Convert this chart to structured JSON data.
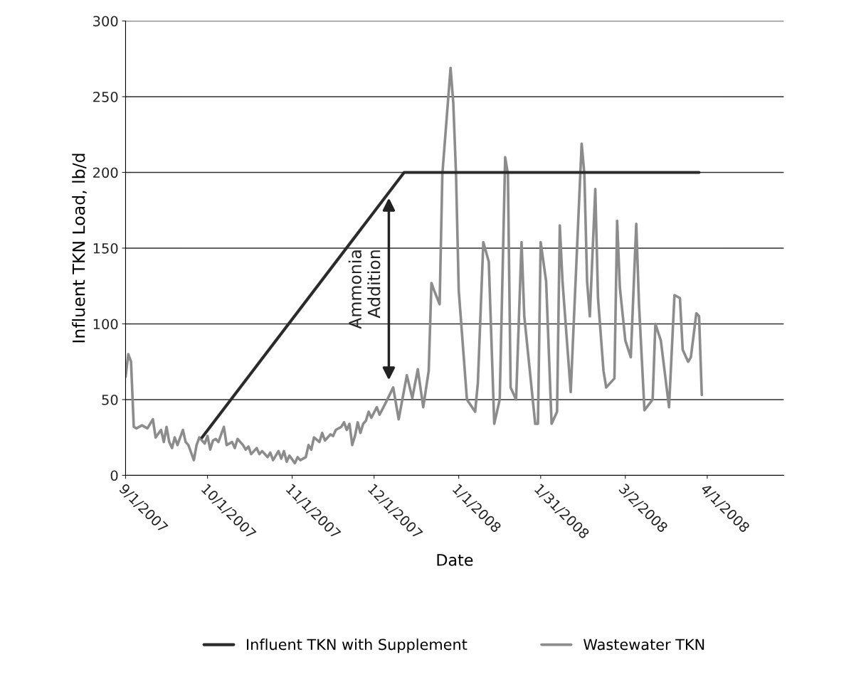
{
  "chart_data": {
    "type": "line",
    "xlabel": "Date",
    "ylabel": "Influent TKN Load, lb/d",
    "xlim": [
      "2007-09-01",
      "2008-04-29"
    ],
    "ylim": [
      0,
      300
    ],
    "yticks": [
      0,
      50,
      100,
      150,
      200,
      250,
      300
    ],
    "xticks": [
      {
        "value": "2007-09-01",
        "label": "9/1/2007"
      },
      {
        "value": "2007-10-01",
        "label": "10/1/2007"
      },
      {
        "value": "2007-11-01",
        "label": "11/1/2007"
      },
      {
        "value": "2007-12-01",
        "label": "12/1/2007"
      },
      {
        "value": "2008-01-01",
        "label": "1/1/2008"
      },
      {
        "value": "2008-01-31",
        "label": "1/31/2008"
      },
      {
        "value": "2008-03-02",
        "label": "3/2/2008"
      },
      {
        "value": "2008-04-01",
        "label": "4/1/2008"
      }
    ],
    "grid": "y",
    "legend": "bottom",
    "marker": "none",
    "line_style": "solid",
    "annotations": [
      "Ammonia\nAddition"
    ],
    "series": [
      {
        "name": "Influent TKN with Supplement",
        "color": "#2b2b2b",
        "x": [
          "2007-09-29",
          "2007-12-12",
          "2008-03-29"
        ],
        "values": [
          25,
          200,
          200
        ]
      },
      {
        "name": "Wastewater TKN",
        "color": "#8c8c8c",
        "x": [
          "2007-09-01",
          "2007-09-02",
          "2007-09-03",
          "2007-09-04",
          "2007-09-05",
          "2007-09-07",
          "2007-09-09",
          "2007-09-10",
          "2007-09-11",
          "2007-09-12",
          "2007-09-14",
          "2007-09-15",
          "2007-09-16",
          "2007-09-17",
          "2007-09-18",
          "2007-09-19",
          "2007-09-20",
          "2007-09-22",
          "2007-09-23",
          "2007-09-24",
          "2007-09-25",
          "2007-09-26",
          "2007-09-27",
          "2007-09-28",
          "2007-09-30",
          "2007-10-01",
          "2007-10-02",
          "2007-10-03",
          "2007-10-04",
          "2007-10-05",
          "2007-10-06",
          "2007-10-07",
          "2007-10-08",
          "2007-10-10",
          "2007-10-11",
          "2007-10-12",
          "2007-10-14",
          "2007-10-15",
          "2007-10-16",
          "2007-10-17",
          "2007-10-19",
          "2007-10-20",
          "2007-10-21",
          "2007-10-23",
          "2007-10-24",
          "2007-10-25",
          "2007-10-27",
          "2007-10-28",
          "2007-10-29",
          "2007-10-30",
          "2007-10-31",
          "2007-11-02",
          "2007-11-03",
          "2007-11-04",
          "2007-11-06",
          "2007-11-07",
          "2007-11-08",
          "2007-11-09",
          "2007-11-11",
          "2007-11-12",
          "2007-11-13",
          "2007-11-15",
          "2007-11-16",
          "2007-11-17",
          "2007-11-19",
          "2007-11-20",
          "2007-11-21",
          "2007-11-22",
          "2007-11-23",
          "2007-11-24",
          "2007-11-25",
          "2007-11-26",
          "2007-11-27",
          "2007-11-28",
          "2007-11-29",
          "2007-11-30",
          "2007-12-02",
          "2007-12-03",
          "2007-12-05",
          "2007-12-08",
          "2007-12-10",
          "2007-12-13",
          "2007-12-15",
          "2007-12-17",
          "2007-12-19",
          "2007-12-21",
          "2007-12-22",
          "2007-12-23",
          "2007-12-25",
          "2007-12-26",
          "2007-12-29",
          "2007-12-30",
          "2007-12-31",
          "2008-01-01",
          "2008-01-04",
          "2008-01-07",
          "2008-01-08",
          "2008-01-10",
          "2008-01-12",
          "2008-01-14",
          "2008-01-16",
          "2008-01-18",
          "2008-01-19",
          "2008-01-20",
          "2008-01-22",
          "2008-01-24",
          "2008-01-25",
          "2008-01-29",
          "2008-01-30",
          "2008-01-31",
          "2008-02-02",
          "2008-02-04",
          "2008-02-06",
          "2008-02-07",
          "2008-02-08",
          "2008-02-11",
          "2008-02-15",
          "2008-02-16",
          "2008-02-17",
          "2008-02-18",
          "2008-02-20",
          "2008-02-21",
          "2008-02-23",
          "2008-02-24",
          "2008-02-27",
          "2008-02-28",
          "2008-02-29",
          "2008-03-02",
          "2008-03-04",
          "2008-03-06",
          "2008-03-07",
          "2008-03-09",
          "2008-03-12",
          "2008-03-13",
          "2008-03-15",
          "2008-03-18",
          "2008-03-20",
          "2008-03-22",
          "2008-03-23",
          "2008-03-25",
          "2008-03-26",
          "2008-03-28",
          "2008-03-29",
          "2008-03-30"
        ],
        "values": [
          65,
          80,
          75,
          32,
          31,
          33,
          31,
          34,
          37,
          25,
          30,
          22,
          32,
          22,
          18,
          25,
          20,
          30,
          22,
          20,
          15,
          10,
          20,
          25,
          21,
          26,
          17,
          23,
          24,
          22,
          27,
          32,
          20,
          22,
          18,
          24,
          20,
          17,
          19,
          14,
          18,
          14,
          16,
          12,
          15,
          10,
          16,
          11,
          16,
          9,
          13,
          8,
          12,
          10,
          12,
          20,
          17,
          25,
          22,
          28,
          23,
          27,
          26,
          30,
          32,
          35,
          30,
          34,
          20,
          26,
          35,
          28,
          34,
          36,
          42,
          38,
          45,
          40,
          47,
          58,
          37,
          66,
          51,
          70,
          45,
          69,
          127,
          122,
          113,
          199,
          269,
          246,
          199,
          122,
          50,
          42,
          61,
          154,
          141,
          34,
          50,
          210,
          199,
          58,
          50,
          154,
          105,
          34,
          34,
          154,
          128,
          34,
          42,
          165,
          128,
          55,
          219,
          199,
          128,
          105,
          189,
          117,
          69,
          58,
          64,
          168,
          124,
          89,
          78,
          166,
          113,
          43,
          50,
          100,
          89,
          45,
          119,
          117,
          83,
          75,
          78,
          107,
          105,
          53
        ]
      }
    ]
  }
}
